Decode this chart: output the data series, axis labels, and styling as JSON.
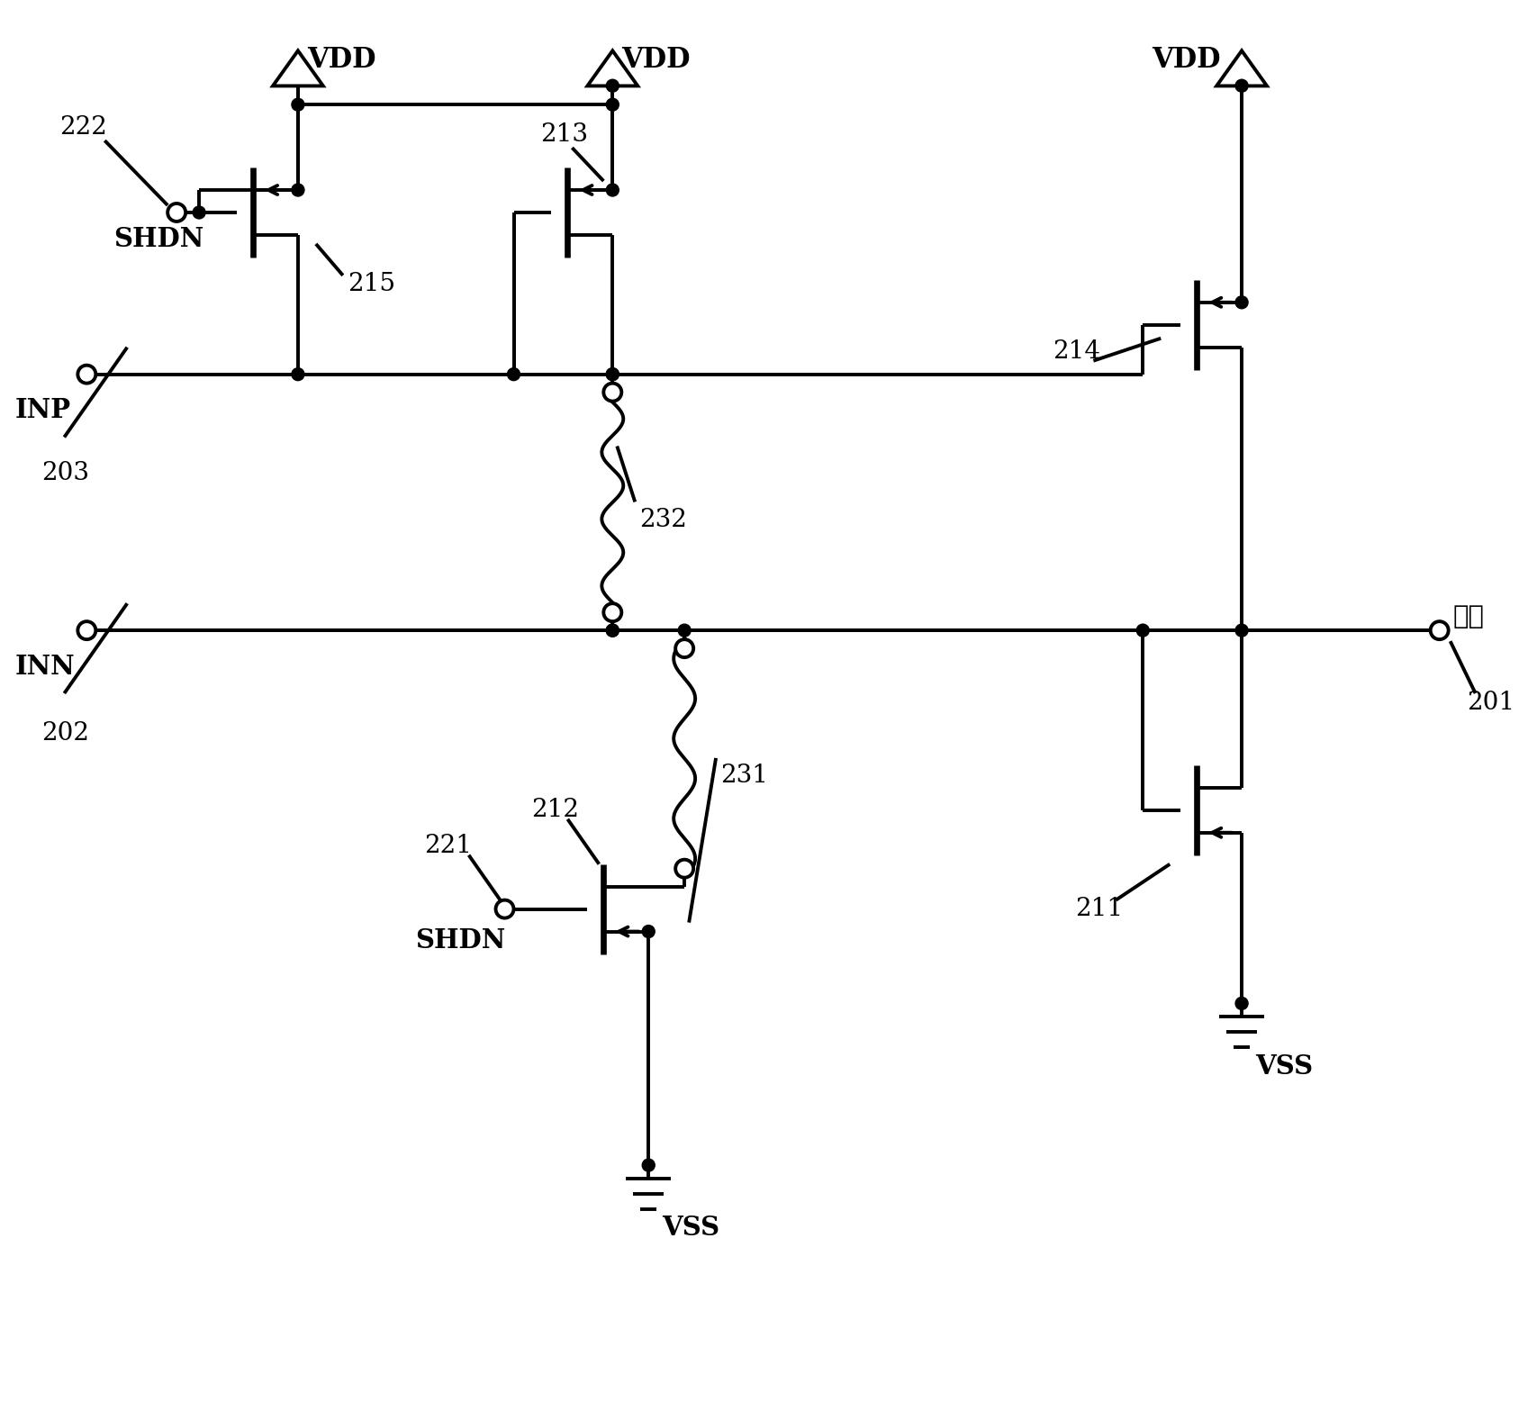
{
  "bg_color": "#ffffff",
  "line_color": "#000000",
  "lw": 2.8,
  "fig_width": 17.08,
  "fig_height": 15.76,
  "labels": {
    "VDD1": "VDD",
    "VDD2": "VDD",
    "VDD3": "VDD",
    "VSS1": "VSS",
    "VSS2": "VSS",
    "SHDN_top": "SHDN",
    "SHDN_bot": "SHDN",
    "INP": "INP",
    "INN": "INN",
    "out_cn": "输出",
    "n222": "222",
    "n203": "203",
    "n215": "215",
    "n213": "213",
    "n214": "214",
    "n232": "232",
    "n231": "231",
    "n212": "212",
    "n221": "221",
    "n211": "211",
    "n201": "201",
    "n202": "202"
  }
}
